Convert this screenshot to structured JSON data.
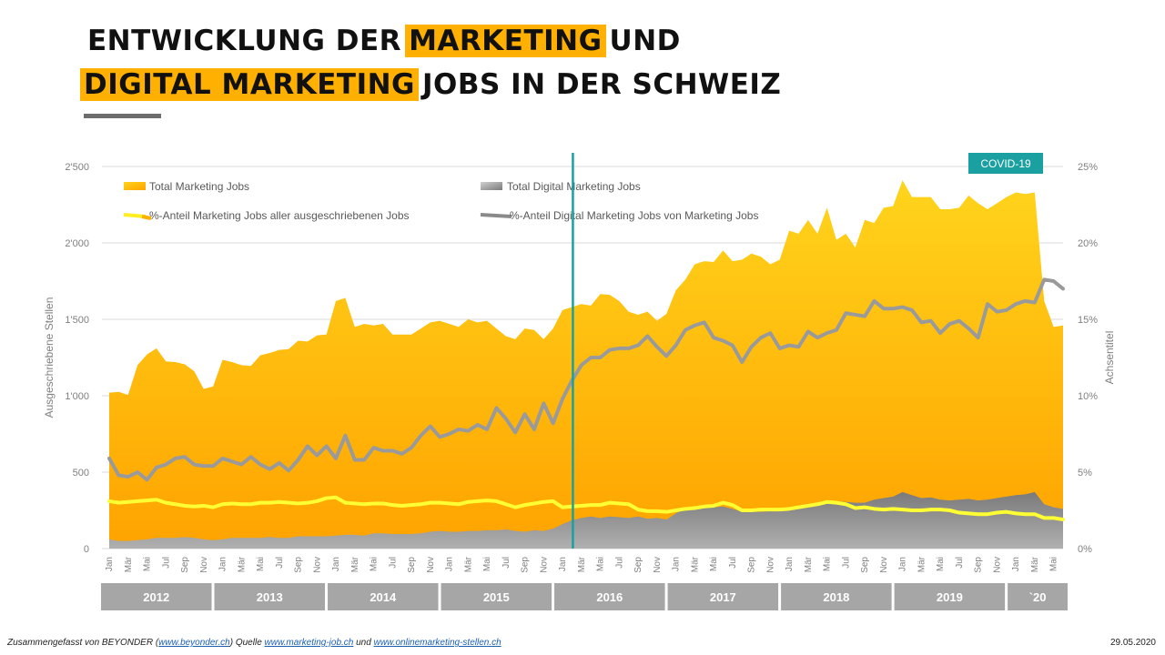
{
  "title": {
    "line1_part1": "ENTWICKLUNG DER",
    "line1_highlight": "MARKETING",
    "line1_part2": "UND",
    "line2_highlight": "DIGITAL MARKETING",
    "line2_part2": "JOBS IN DER SCHWEIZ"
  },
  "colors": {
    "accent": "#ffb000",
    "area_total_top": "#ffd41c",
    "area_total_bottom": "#ffa200",
    "area_digital": "#8c8c8c",
    "line_share_marketing": "#ffff33",
    "line_share_digital": "#9a9a9a",
    "covid": "#1aa0a0",
    "year_box": "#a6a6a6"
  },
  "footer": {
    "prefix": "Zusammengefasst von BEYONDER (",
    "link1": "www.beyonder.ch",
    "middle": ")  Quelle",
    "link2": "www.marketing-job.ch",
    "und": "und",
    "link3": "www.onlinemarketing-stellen.ch",
    "date": "29.05.2020"
  },
  "chart_data": {
    "type": "area",
    "title": "Entwicklung der Marketing und Digital Marketing Jobs in der Schweiz",
    "ylabel_left": "Ausgeschriebene  Stellen",
    "ylabel_right": "Achsentitel",
    "ylim_left": [
      0,
      2500
    ],
    "ylim_right": [
      0,
      25
    ],
    "yticks_left": [
      "0",
      "500",
      "1'000",
      "1'500",
      "2'000",
      "2'500"
    ],
    "yticks_right": [
      "0%",
      "5%",
      "10%",
      "15%",
      "20%",
      "25%"
    ],
    "grid": true,
    "legend": [
      "Total Marketing Jobs",
      "Total Digital Marketing Jobs",
      "%-Anteil Marketing Jobs aller ausgeschriebenen Jobs",
      "%-Anteil Digital Marketing Jobs von Marketing Jobs"
    ],
    "annotation": "COVID-19",
    "annotation_x_index": 49,
    "month_labels": [
      "Jan",
      "Mär",
      "Mai",
      "Jul",
      "Sep",
      "Nov",
      "Jan",
      "Mär",
      "Mai",
      "Jul",
      "Sep",
      "Nov",
      "Jan",
      "Mär",
      "Mai",
      "Jul",
      "Sep",
      "Nov",
      "Jan",
      "Mär",
      "Mai",
      "Jul",
      "Sep",
      "Nov",
      "Jan",
      "Mär",
      "Mai",
      "Jul",
      "Sep",
      "Nov",
      "Jan",
      "Mär",
      "Mai",
      "Jul",
      "Sep",
      "Nov",
      "Jan",
      "Mär",
      "Mai",
      "Jul",
      "Sep",
      "Nov",
      "Jan",
      "Mär",
      "Mai",
      "Jul",
      "Sep",
      "Nov",
      "Jan",
      "Mär",
      "Mai"
    ],
    "years": [
      "2012",
      "2013",
      "2014",
      "2015",
      "2016",
      "2017",
      "2018",
      "2019",
      "`20"
    ],
    "series": [
      {
        "name": "Total Marketing Jobs",
        "values": [
          1020,
          1025,
          1005,
          1200,
          1270,
          1310,
          1225,
          1220,
          1205,
          1160,
          1045,
          1060,
          1235,
          1220,
          1200,
          1195,
          1265,
          1280,
          1300,
          1305,
          1360,
          1355,
          1395,
          1400,
          1620,
          1640,
          1450,
          1470,
          1460,
          1470,
          1400,
          1400,
          1400,
          1440,
          1480,
          1490,
          1470,
          1450,
          1500,
          1480,
          1490,
          1440,
          1390,
          1370,
          1440,
          1430,
          1370,
          1440,
          1560,
          1580,
          1600,
          1590,
          1665,
          1660,
          1620,
          1550,
          1530,
          1550,
          1490,
          1535,
          1690,
          1760,
          1860,
          1880,
          1875,
          1950,
          1880,
          1890,
          1930,
          1910,
          1860,
          1890,
          2080,
          2060,
          2150,
          2060,
          2230,
          2020,
          2060,
          1970,
          2150,
          2130,
          2230,
          2240,
          2410,
          2300,
          2300,
          2300,
          2220,
          2220,
          2230,
          2310,
          2260,
          2220,
          2260,
          2300,
          2330,
          2320,
          2330,
          1620,
          1450,
          1460
        ]
      },
      {
        "name": "Total Digital Marketing Jobs",
        "values": [
          60,
          50,
          50,
          55,
          60,
          70,
          70,
          70,
          75,
          70,
          60,
          55,
          60,
          70,
          70,
          70,
          70,
          75,
          70,
          70,
          80,
          80,
          80,
          80,
          85,
          90,
          90,
          85,
          100,
          100,
          95,
          95,
          95,
          100,
          110,
          115,
          110,
          110,
          115,
          115,
          120,
          120,
          125,
          115,
          110,
          120,
          115,
          130,
          160,
          185,
          200,
          210,
          200,
          210,
          205,
          200,
          210,
          195,
          200,
          190,
          230,
          260,
          270,
          280,
          270,
          275,
          260,
          240,
          245,
          240,
          245,
          250,
          260,
          260,
          270,
          285,
          300,
          310,
          305,
          300,
          300,
          320,
          330,
          340,
          370,
          350,
          330,
          335,
          320,
          315,
          320,
          325,
          315,
          320,
          330,
          340,
          350,
          355,
          370,
          290,
          270,
          260
        ]
      },
      {
        "name": "%-Anteil Marketing Jobs aller ausgeschriebenen Jobs",
        "values": [
          3.1,
          3.0,
          3.05,
          3.1,
          3.15,
          3.2,
          3.0,
          2.9,
          2.8,
          2.75,
          2.8,
          2.7,
          2.9,
          2.95,
          2.9,
          2.9,
          3.0,
          3.0,
          3.05,
          3.0,
          2.95,
          3.0,
          3.1,
          3.3,
          3.35,
          3.0,
          2.95,
          2.9,
          2.95,
          2.95,
          2.85,
          2.8,
          2.85,
          2.9,
          3.0,
          3.0,
          2.95,
          2.9,
          3.05,
          3.1,
          3.15,
          3.1,
          2.9,
          2.7,
          2.85,
          2.95,
          3.05,
          3.1,
          2.7,
          2.75,
          2.8,
          2.85,
          2.85,
          3.0,
          2.95,
          2.9,
          2.55,
          2.45,
          2.45,
          2.4,
          2.5,
          2.6,
          2.65,
          2.75,
          2.8,
          3.0,
          2.85,
          2.5,
          2.5,
          2.55,
          2.55,
          2.55,
          2.6,
          2.7,
          2.8,
          2.9,
          3.05,
          3.0,
          2.9,
          2.65,
          2.7,
          2.6,
          2.55,
          2.6,
          2.55,
          2.5,
          2.5,
          2.55,
          2.55,
          2.5,
          2.35,
          2.3,
          2.25,
          2.25,
          2.35,
          2.4,
          2.3,
          2.25,
          2.25,
          2.0,
          2.0,
          1.9
        ]
      },
      {
        "name": "%-Anteil Digital Marketing Jobs von Marketing Jobs",
        "values": [
          5.9,
          4.8,
          4.7,
          5.0,
          4.5,
          5.3,
          5.5,
          5.9,
          6.0,
          5.5,
          5.4,
          5.4,
          5.9,
          5.7,
          5.5,
          6.0,
          5.5,
          5.2,
          5.6,
          5.1,
          5.8,
          6.7,
          6.1,
          6.7,
          5.9,
          7.4,
          5.8,
          5.8,
          6.6,
          6.4,
          6.4,
          6.2,
          6.6,
          7.4,
          8.0,
          7.3,
          7.5,
          7.8,
          7.7,
          8.1,
          7.8,
          9.2,
          8.5,
          7.6,
          8.8,
          7.8,
          9.5,
          8.2,
          9.8,
          11.0,
          12.0,
          12.5,
          12.5,
          13.0,
          13.1,
          13.1,
          13.3,
          13.9,
          13.2,
          12.6,
          13.3,
          14.3,
          14.6,
          14.8,
          13.8,
          13.6,
          13.3,
          12.2,
          13.2,
          13.8,
          14.1,
          13.1,
          13.3,
          13.2,
          14.2,
          13.8,
          14.1,
          14.3,
          15.4,
          15.3,
          15.2,
          16.2,
          15.7,
          15.7,
          15.8,
          15.6,
          14.8,
          14.9,
          14.1,
          14.7,
          14.9,
          14.4,
          13.8,
          16.0,
          15.5,
          15.6,
          16.0,
          16.2,
          16.1,
          17.6,
          17.5,
          17.0
        ]
      }
    ]
  }
}
